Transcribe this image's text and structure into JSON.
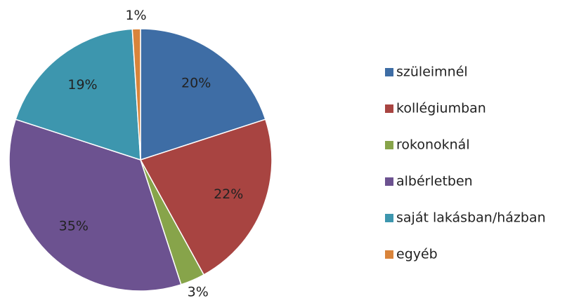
{
  "chart_data": {
    "type": "pie",
    "categories": [
      "szüleimnél",
      "kollégiumban",
      "rokonoknál",
      "albérletben",
      "saját lakásban/házban",
      "egyéb"
    ],
    "values": [
      20,
      22,
      3,
      35,
      19,
      1
    ],
    "value_labels": [
      "20%",
      "22%",
      "3%",
      "35%",
      "19%",
      "1%"
    ],
    "colors": [
      "#3E6DA5",
      "#A84441",
      "#87A44A",
      "#6C5290",
      "#3D96AE",
      "#D9843B"
    ],
    "legend": "right"
  }
}
